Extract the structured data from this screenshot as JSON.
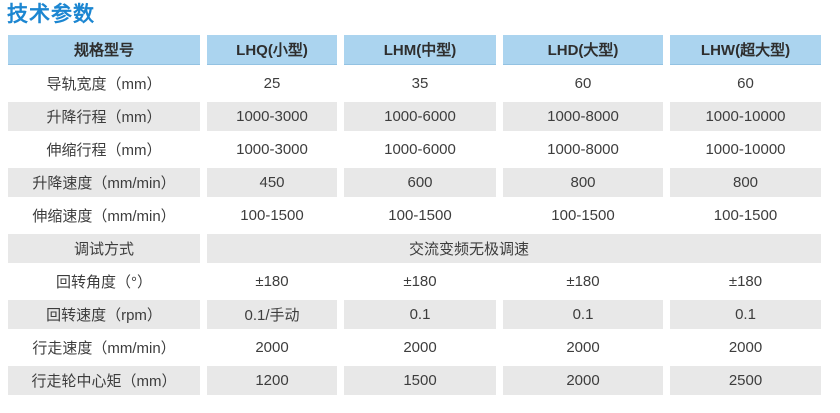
{
  "page": {
    "title": "技术参数"
  },
  "colors": {
    "title_blue": "#1c86d1",
    "header_bg": "#abd4ef",
    "row_gray": "#e8e8e8",
    "text": "#3d3d3d"
  },
  "table": {
    "headers": [
      "规格型号",
      "LHQ(小型)",
      "LHM(中型)",
      "LHD(大型)",
      "LHW(超大型)"
    ],
    "rows": [
      {
        "label": "导轨宽度（mm）",
        "values": [
          "25",
          "35",
          "60",
          "60"
        ]
      },
      {
        "label": "升降行程（mm）",
        "values": [
          "1000-3000",
          "1000-6000",
          "1000-8000",
          "1000-10000"
        ]
      },
      {
        "label": "伸缩行程（mm）",
        "values": [
          "1000-3000",
          "1000-6000",
          "1000-8000",
          "1000-10000"
        ]
      },
      {
        "label": "升降速度（mm/min）",
        "values": [
          "450",
          "600",
          "800",
          "800"
        ]
      },
      {
        "label": "伸缩速度（mm/min）",
        "values": [
          "100-1500",
          "100-1500",
          "100-1500",
          "100-1500"
        ]
      },
      {
        "label": "调试方式",
        "values": [
          "交流变频无极调速"
        ],
        "merged": true
      },
      {
        "label": "回转角度（°）",
        "values": [
          "±180",
          "±180",
          "±180",
          "±180"
        ]
      },
      {
        "label": "回转速度（rpm）",
        "values": [
          "0.1/手动",
          "0.1",
          "0.1",
          "0.1"
        ]
      },
      {
        "label": "行走速度（mm/min）",
        "values": [
          "2000",
          "2000",
          "2000",
          "2000"
        ]
      },
      {
        "label": "行走轮中心矩（mm）",
        "values": [
          "1200",
          "1500",
          "2000",
          "2500"
        ]
      }
    ]
  }
}
